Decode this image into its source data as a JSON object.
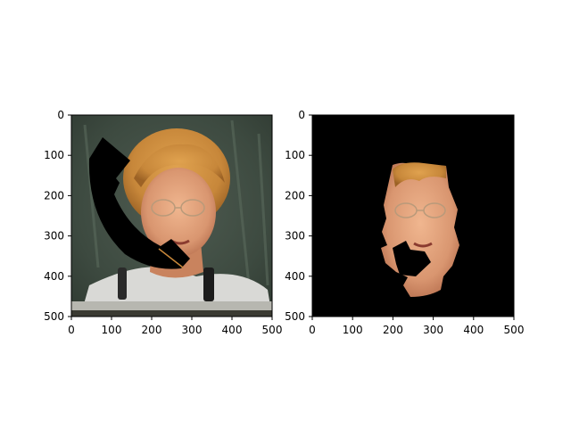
{
  "chart_data": [
    {
      "type": "image",
      "title": "",
      "xlabel": "",
      "ylabel": "",
      "xlim": [
        0,
        500
      ],
      "ylim": [
        500,
        0
      ],
      "xticks": [
        0,
        100,
        200,
        300,
        400,
        500
      ],
      "yticks": [
        0,
        100,
        200,
        300,
        400,
        500
      ],
      "content": "photo of a woman speaking at a microphone with a black phone-shaped occlusion"
    },
    {
      "type": "image",
      "title": "",
      "xlabel": "",
      "ylabel": "",
      "xlim": [
        0,
        500
      ],
      "ylim": [
        500,
        0
      ],
      "xticks": [
        0,
        100,
        200,
        300,
        400,
        500
      ],
      "yticks": [
        0,
        100,
        200,
        300,
        400,
        500
      ],
      "content": "segmented face region on black background with phone occlusion removed"
    }
  ]
}
